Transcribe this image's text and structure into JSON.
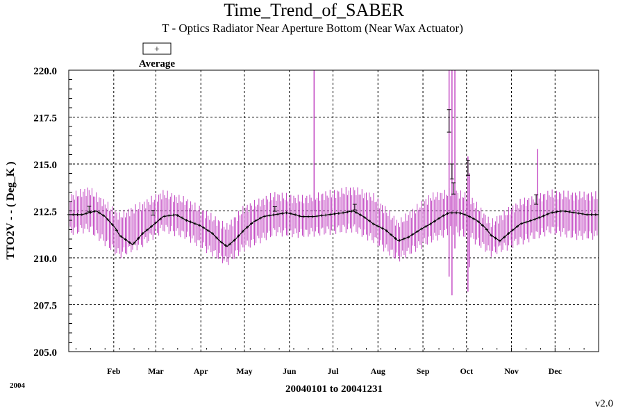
{
  "chart_data": {
    "type": "line",
    "title": "Time_Trend_of_SABER",
    "subtitle": "T - Optics Radiator Near Aperture Bottom (Near Wax Actuator)",
    "ylabel": "TTO2V  - - ( Deg_K )",
    "xlabel": "20040101 to 20041231",
    "year_label": "2004",
    "version": "v2.0",
    "legend": {
      "symbol": "+",
      "label": "Average",
      "placement": "top-left"
    },
    "ylim": [
      205.0,
      220.0
    ],
    "y_ticks": [
      "205.0",
      "207.5",
      "210.0",
      "212.5",
      "215.0",
      "217.5",
      "220.0"
    ],
    "x_ticks": [
      "Feb",
      "Mar",
      "Apr",
      "May",
      "Jun",
      "Jul",
      "Aug",
      "Sep",
      "Oct",
      "Nov",
      "Dec"
    ],
    "x_tick_days": [
      32,
      61,
      92,
      122,
      153,
      183,
      214,
      245,
      275,
      306,
      336
    ],
    "xlim_days": [
      1,
      366
    ],
    "grid": true,
    "colors": {
      "range": "#c040c0",
      "average": "#000000",
      "grid": "#000000"
    },
    "series": [
      {
        "name": "Average",
        "x_days": [
          1,
          10,
          15,
          20,
          26,
          33,
          36,
          45,
          52,
          60,
          66,
          75,
          82,
          92,
          100,
          105,
          110,
          116,
          122,
          128,
          135,
          143,
          151,
          157,
          161,
          170,
          180,
          190,
          197,
          204,
          211,
          219,
          228,
          235,
          243,
          250,
          258,
          263,
          265,
          270,
          274,
          277,
          282,
          288,
          292,
          298,
          304,
          312,
          320,
          327,
          333,
          341,
          350,
          358,
          366
        ],
        "y": [
          212.3,
          212.3,
          212.4,
          212.5,
          212.2,
          211.6,
          211.2,
          210.7,
          211.3,
          211.8,
          212.2,
          212.3,
          212.0,
          211.7,
          211.3,
          210.9,
          210.6,
          211.0,
          211.5,
          211.9,
          212.2,
          212.3,
          212.4,
          212.3,
          212.2,
          212.2,
          212.3,
          212.4,
          212.5,
          212.2,
          211.8,
          211.5,
          210.9,
          211.1,
          211.5,
          211.8,
          212.2,
          212.4,
          212.4,
          212.4,
          212.3,
          212.2,
          212.0,
          211.6,
          211.2,
          210.9,
          211.3,
          211.8,
          212.0,
          212.2,
          212.4,
          212.5,
          212.4,
          212.3,
          212.3
        ]
      },
      {
        "name": "Max",
        "x_days": [
          1,
          15,
          36,
          52,
          66,
          82,
          110,
          122,
          143,
          161,
          197,
          211,
          228,
          250,
          265,
          277,
          292,
          312,
          333,
          350,
          366
        ],
        "y": [
          213.2,
          213.6,
          212.2,
          212.8,
          213.4,
          213.0,
          211.6,
          212.6,
          213.3,
          213.1,
          213.6,
          213.2,
          211.8,
          213.2,
          213.5,
          213.2,
          211.8,
          212.9,
          213.4,
          213.3,
          213.3
        ]
      },
      {
        "name": "Min",
        "x_days": [
          1,
          15,
          36,
          52,
          66,
          82,
          110,
          122,
          143,
          161,
          197,
          211,
          228,
          250,
          265,
          277,
          292,
          312,
          333,
          350,
          366
        ],
        "y": [
          211.4,
          211.6,
          210.2,
          210.8,
          211.6,
          211.2,
          209.8,
          210.6,
          211.4,
          211.3,
          211.6,
          211.0,
          210.0,
          211.0,
          211.5,
          211.2,
          210.3,
          210.9,
          211.5,
          211.2,
          211.2
        ]
      }
    ],
    "spikes": [
      {
        "day": 170,
        "y_min": 212.5,
        "y_max": 220.0
      },
      {
        "day": 263,
        "y_min": 209.0,
        "y_max": 220.0
      },
      {
        "day": 265,
        "y_min": 208.0,
        "y_max": 220.0
      },
      {
        "day": 267,
        "y_min": 210.5,
        "y_max": 220.0
      },
      {
        "day": 276,
        "y_min": 208.2,
        "y_max": 215.4
      },
      {
        "day": 277,
        "y_min": 209.5,
        "y_max": 214.5
      },
      {
        "day": 324,
        "y_min": 212.0,
        "y_max": 215.8
      }
    ],
    "error_bars": [
      {
        "day": 15,
        "y": 212.6,
        "err": 0.15
      },
      {
        "day": 59,
        "y": 212.4,
        "err": 0.12
      },
      {
        "day": 143,
        "y": 212.6,
        "err": 0.12
      },
      {
        "day": 198,
        "y": 212.7,
        "err": 0.15
      },
      {
        "day": 263,
        "y": 217.3,
        "err": 0.6
      },
      {
        "day": 265,
        "y": 214.6,
        "err": 0.4
      },
      {
        "day": 266,
        "y": 213.7,
        "err": 0.3
      },
      {
        "day": 276,
        "y": 214.8,
        "err": 0.4
      },
      {
        "day": 323,
        "y": 213.1,
        "err": 0.25
      }
    ]
  }
}
